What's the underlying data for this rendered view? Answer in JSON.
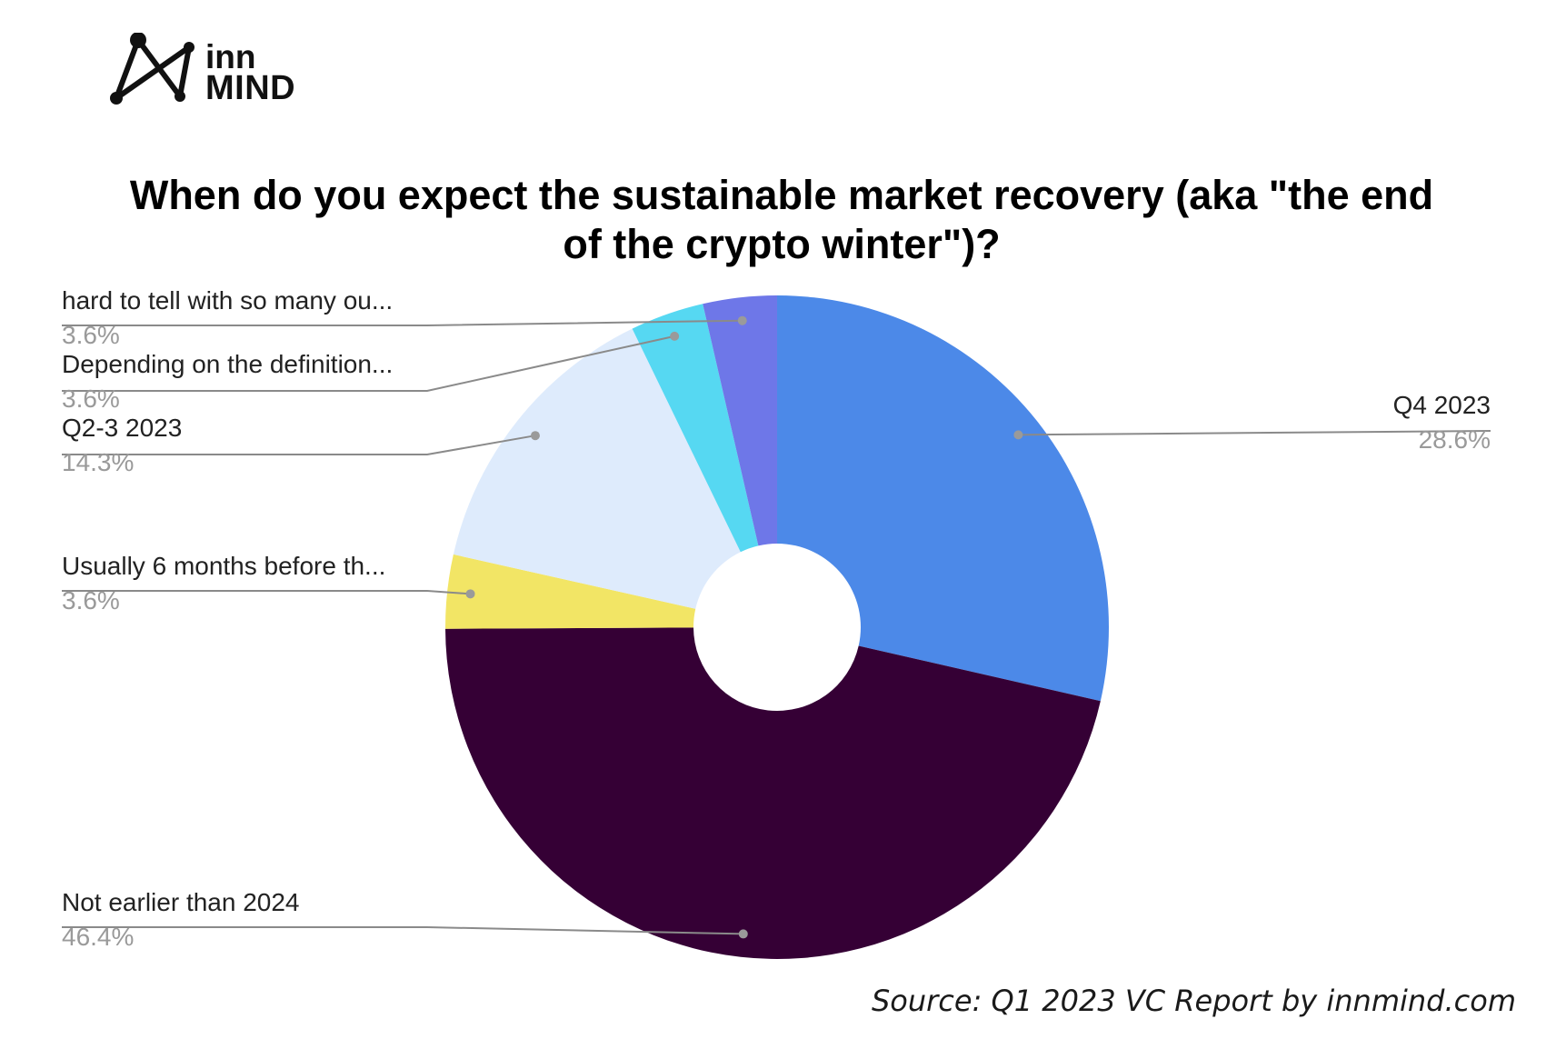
{
  "logo": {
    "line1": "inn",
    "line2": "MIND"
  },
  "source": "Source: Q1 2023 VC Report by innmind.com",
  "chart_data": {
    "type": "pie",
    "donut": true,
    "title": "When do you expect the sustainable market recovery (aka \"the end of the crypto winter\")?",
    "title_lines": [
      "When do you expect the sustainable market recovery (aka \"the end",
      "of the crypto winter\")?"
    ],
    "slices": [
      {
        "label": "Q4 2023",
        "value": 28.6,
        "pct_label": "28.6%",
        "color": "#4C89E8"
      },
      {
        "label": "Not earlier than 2024",
        "value": 46.4,
        "pct_label": "46.4%",
        "color": "#350035"
      },
      {
        "label": "Usually 6 months before th...",
        "value": 3.6,
        "pct_label": "3.6%",
        "color": "#F2E565"
      },
      {
        "label": "Q2-3 2023",
        "value": 14.3,
        "pct_label": "14.3%",
        "color": "#DEEBFC"
      },
      {
        "label": "Depending on the definition...",
        "value": 3.6,
        "pct_label": "3.6%",
        "color": "#56D8F2"
      },
      {
        "label": "hard to tell with so many ou...",
        "value": 3.6,
        "pct_label": "3.6%",
        "color": "#6E77E8"
      }
    ]
  }
}
